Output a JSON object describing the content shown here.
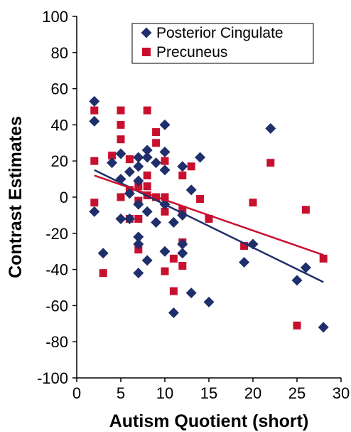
{
  "chart_data": {
    "type": "scatter",
    "title": "",
    "xlabel": "Autism Quotient (short)",
    "ylabel": "Contrast Estimates",
    "xlim": [
      0,
      30
    ],
    "ylim": [
      -100,
      100
    ],
    "xticks": [
      0,
      5,
      10,
      15,
      20,
      25,
      30
    ],
    "yticks": [
      100,
      80,
      60,
      40,
      20,
      0,
      -20,
      -40,
      -60,
      -80,
      -100
    ],
    "grid": false,
    "legend_position": "top-right",
    "series": [
      {
        "name": "Posterior Cingulate",
        "marker": "diamond",
        "color": "#1f2f6b",
        "points": [
          [
            2,
            53
          ],
          [
            2,
            42
          ],
          [
            2,
            -8
          ],
          [
            3,
            -31
          ],
          [
            4,
            19
          ],
          [
            5,
            24
          ],
          [
            5,
            10
          ],
          [
            5,
            -12
          ],
          [
            6,
            14
          ],
          [
            6,
            2
          ],
          [
            6,
            -12
          ],
          [
            7,
            22
          ],
          [
            7,
            17
          ],
          [
            7,
            9
          ],
          [
            7,
            -4
          ],
          [
            7,
            -22
          ],
          [
            7,
            -26
          ],
          [
            7,
            -42
          ],
          [
            8,
            26
          ],
          [
            8,
            22
          ],
          [
            8,
            -8
          ],
          [
            8,
            -35
          ],
          [
            9,
            19
          ],
          [
            9,
            -14
          ],
          [
            10,
            40
          ],
          [
            10,
            25
          ],
          [
            10,
            15
          ],
          [
            10,
            -4
          ],
          [
            10,
            -30
          ],
          [
            11,
            -14
          ],
          [
            11,
            -64
          ],
          [
            12,
            17
          ],
          [
            12,
            -10
          ],
          [
            12,
            -26
          ],
          [
            12,
            -31
          ],
          [
            13,
            4
          ],
          [
            13,
            -53
          ],
          [
            14,
            22
          ],
          [
            15,
            -58
          ],
          [
            19,
            -36
          ],
          [
            20,
            -26
          ],
          [
            22,
            38
          ],
          [
            25,
            -46
          ],
          [
            26,
            -39
          ],
          [
            28,
            -72
          ]
        ]
      },
      {
        "name": "Precuneus",
        "marker": "square",
        "color": "#c8102e",
        "points": [
          [
            2,
            48
          ],
          [
            2,
            20
          ],
          [
            2,
            -3
          ],
          [
            3,
            -42
          ],
          [
            4,
            23
          ],
          [
            5,
            48
          ],
          [
            5,
            40
          ],
          [
            5,
            32
          ],
          [
            5,
            0
          ],
          [
            6,
            21
          ],
          [
            6,
            4
          ],
          [
            6,
            -12
          ],
          [
            7,
            6
          ],
          [
            7,
            -2
          ],
          [
            7,
            -12
          ],
          [
            7,
            -29
          ],
          [
            8,
            48
          ],
          [
            8,
            12
          ],
          [
            8,
            6
          ],
          [
            8,
            1
          ],
          [
            9,
            36
          ],
          [
            9,
            30
          ],
          [
            9,
            0
          ],
          [
            10,
            20
          ],
          [
            10,
            0
          ],
          [
            10,
            -8
          ],
          [
            10,
            -41
          ],
          [
            11,
            -34
          ],
          [
            11,
            -52
          ],
          [
            12,
            12
          ],
          [
            12,
            -7
          ],
          [
            12,
            -25
          ],
          [
            12,
            -38
          ],
          [
            13,
            17
          ],
          [
            14,
            -1
          ],
          [
            15,
            -12
          ],
          [
            19,
            -27
          ],
          [
            20,
            -3
          ],
          [
            22,
            19
          ],
          [
            25,
            -71
          ],
          [
            26,
            -7
          ],
          [
            28,
            -34
          ]
        ]
      }
    ],
    "trendlines": [
      {
        "series": "Posterior Cingulate",
        "color": "#1f2f6b",
        "x": [
          2,
          28
        ],
        "y": [
          15,
          -47
        ]
      },
      {
        "series": "Precuneus",
        "color": "#c8102e",
        "x": [
          2,
          28
        ],
        "y": [
          12,
          -32
        ]
      }
    ]
  }
}
